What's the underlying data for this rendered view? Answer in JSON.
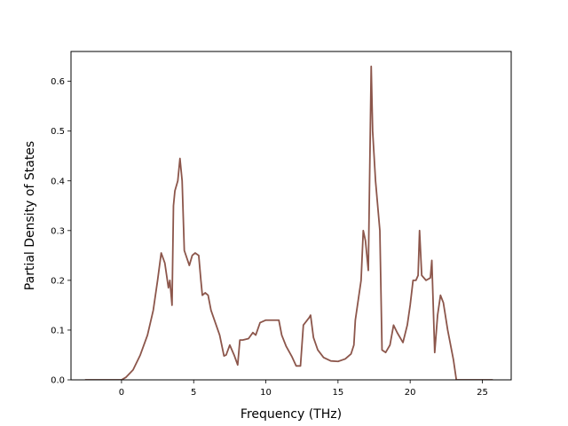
{
  "chart_data": {
    "type": "line",
    "title": "",
    "xlabel": "Frequency (THz)",
    "ylabel": "Partial Density of States",
    "xlim": [
      -3.5,
      27.0
    ],
    "ylim": [
      0.0,
      0.66
    ],
    "xticks": [
      0,
      5,
      10,
      15,
      20,
      25
    ],
    "yticks": [
      0.0,
      0.1,
      0.2,
      0.3,
      0.4,
      0.5,
      0.6
    ],
    "xtick_labels": [
      "0",
      "5",
      "10",
      "15",
      "20",
      "25"
    ],
    "ytick_labels": [
      "0.0",
      "0.1",
      "0.2",
      "0.3",
      "0.4",
      "0.5",
      "0.6"
    ],
    "grid": false,
    "legend": "none",
    "series": [
      {
        "color": "#8c564b",
        "x": [
          -2.5,
          0.0,
          0.3,
          0.8,
          1.3,
          1.8,
          2.2,
          2.5,
          2.75,
          3.0,
          3.25,
          3.35,
          3.5,
          3.6,
          3.7,
          3.9,
          4.05,
          4.2,
          4.35,
          4.7,
          4.9,
          5.1,
          5.35,
          5.5,
          5.6,
          5.8,
          6.0,
          6.2,
          6.5,
          6.8,
          7.1,
          7.25,
          7.5,
          7.8,
          8.05,
          8.2,
          8.4,
          8.8,
          9.1,
          9.3,
          9.6,
          10.0,
          10.5,
          10.9,
          11.1,
          11.4,
          11.8,
          12.1,
          12.4,
          12.6,
          13.0,
          13.1,
          13.3,
          13.6,
          14.0,
          14.5,
          15.0,
          15.5,
          15.9,
          16.1,
          16.2,
          16.4,
          16.6,
          16.75,
          16.9,
          17.1,
          17.3,
          17.4,
          17.6,
          17.9,
          18.05,
          18.3,
          18.6,
          18.85,
          19.1,
          19.5,
          19.8,
          20.0,
          20.2,
          20.4,
          20.55,
          20.65,
          20.8,
          21.1,
          21.4,
          21.5,
          21.7,
          21.9,
          22.1,
          22.3,
          22.6,
          23.0,
          23.2,
          24.0,
          25.7
        ],
        "y": [
          0.0,
          0.0,
          0.005,
          0.02,
          0.05,
          0.09,
          0.14,
          0.2,
          0.255,
          0.235,
          0.185,
          0.2,
          0.15,
          0.35,
          0.38,
          0.4,
          0.445,
          0.4,
          0.26,
          0.23,
          0.25,
          0.255,
          0.25,
          0.2,
          0.17,
          0.175,
          0.17,
          0.14,
          0.115,
          0.09,
          0.048,
          0.05,
          0.07,
          0.05,
          0.03,
          0.08,
          0.08,
          0.083,
          0.095,
          0.09,
          0.115,
          0.12,
          0.12,
          0.12,
          0.09,
          0.068,
          0.047,
          0.028,
          0.028,
          0.11,
          0.125,
          0.13,
          0.085,
          0.06,
          0.045,
          0.038,
          0.037,
          0.042,
          0.052,
          0.07,
          0.12,
          0.16,
          0.2,
          0.3,
          0.28,
          0.22,
          0.63,
          0.5,
          0.4,
          0.3,
          0.06,
          0.055,
          0.07,
          0.11,
          0.095,
          0.075,
          0.11,
          0.15,
          0.2,
          0.2,
          0.21,
          0.3,
          0.21,
          0.2,
          0.205,
          0.24,
          0.055,
          0.13,
          0.17,
          0.155,
          0.1,
          0.04,
          0.0,
          0.0,
          0.0
        ]
      }
    ]
  }
}
